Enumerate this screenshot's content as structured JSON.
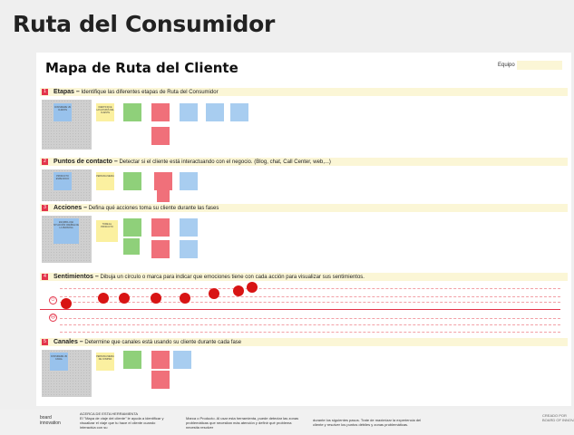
{
  "page_title": "Ruta del Consumidor",
  "board": {
    "title": "Mapa de Ruta del Cliente",
    "team_label": "Equipo"
  },
  "sections": [
    {
      "num": "1",
      "title": "Etapas –",
      "desc": "Identifique las diferentes etapas de Ruta del Consumidor"
    },
    {
      "num": "2",
      "title": "Puntos de contacto –",
      "desc": "Detectar si el cliente está interactuando con el negocio. (Blog, chat, Call Center, web,...)"
    },
    {
      "num": "3",
      "title": "Acciones –",
      "desc": "Defina qué acciones toma su cliente durante las fases"
    },
    {
      "num": "4",
      "title": "Sentimientos –",
      "desc": "Dibuja un círculo o marca para indicar que  emociones tiene con cada acción para visualizar sus sentimientos."
    },
    {
      "num": "5",
      "title": "Canales –",
      "desc": "Determine que canales está usando su cliente durante cada fase"
    }
  ],
  "notes": {
    "s1": [
      "CONSIDERE UN CLIENTE",
      "IDENTIFIQUE LAS ETAPAS DEL CLIENTE",
      "",
      "",
      "",
      "",
      "",
      ""
    ],
    "s2": [
      "PRODUCTO ESPECIFICO",
      "PERSONA MEDIA",
      "",
      "",
      "",
      ""
    ],
    "s3": [
      "ESCRIBA UNA SITUACIÓN CREÍBLE DE LA PERSONA",
      "TOME EL PRODUCTO",
      "",
      "",
      "",
      "",
      "",
      ""
    ],
    "s5": [
      "CONSIDERE UN CANAL",
      "PERSONA MEDIA DE COMPRA",
      "",
      "",
      "",
      ""
    ]
  },
  "footer": {
    "logo": "board\ninnovation",
    "col1": "ACERCA DE ESTA HERRAMIENTA\nEl \"Mapa de viaje del cliente\" le ayuda a identificar y visualizar el viaje que tu hace el cliente cuando interactúa con su",
    "col2": "Marca o Producto. Al usar esta herramienta, puede detectar las zonas problemáticas que necesitan más atención y definir qué problema necesita resolver",
    "col3": "durante los siguientes pasos. Trate de maximizar la experiencia del cliente y resolver los puntos débiles y zonas problemáticas.",
    "brand": "CREADO POR\nBOARD OF INNOVATION"
  }
}
